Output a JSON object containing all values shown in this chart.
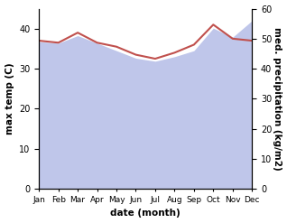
{
  "months": [
    "Jan",
    "Feb",
    "Mar",
    "Apr",
    "May",
    "Jun",
    "Jul",
    "Aug",
    "Sep",
    "Oct",
    "Nov",
    "Dec"
  ],
  "max_temp": [
    37.0,
    36.5,
    39.0,
    36.5,
    35.5,
    33.5,
    32.5,
    34.0,
    36.0,
    41.0,
    37.5,
    37.0
  ],
  "med_precip": [
    49.0,
    48.5,
    51.0,
    48.5,
    46.0,
    43.5,
    42.5,
    44.0,
    46.0,
    53.5,
    50.5,
    56.0
  ],
  "precip_color": "#c0504d",
  "fill_color": "#b8c0e8",
  "left_ylabel": "max temp (C)",
  "right_ylabel": "med. precipitation (kg/m2)",
  "xlabel": "date (month)",
  "ylim_left": [
    0,
    45
  ],
  "ylim_right": [
    0,
    60
  ],
  "yticks_left": [
    0,
    10,
    20,
    30,
    40
  ],
  "yticks_right": [
    0,
    10,
    20,
    30,
    40,
    50,
    60
  ],
  "bg_color": "#ffffff"
}
